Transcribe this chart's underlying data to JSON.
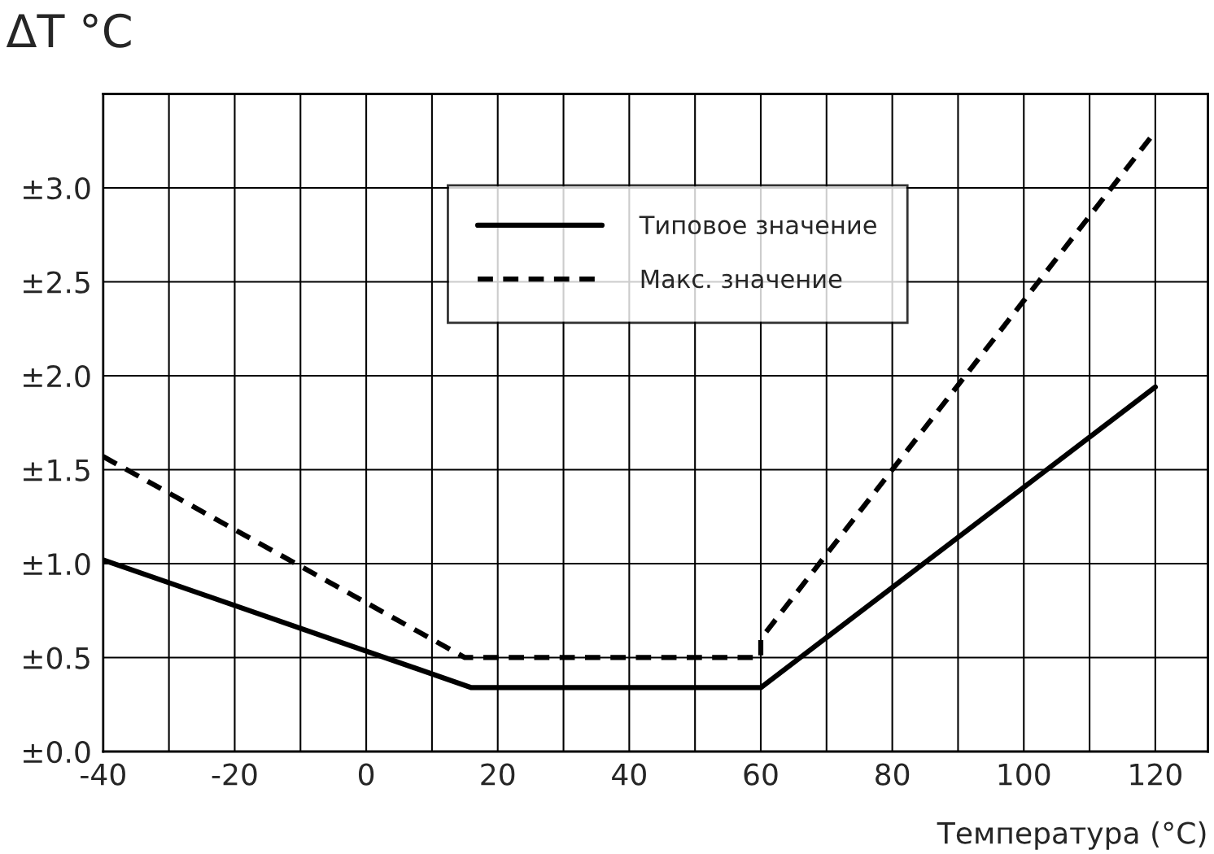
{
  "chart_data": {
    "type": "line",
    "ylabel": "ΔT °C",
    "xlabel": "Температура (°C)",
    "series": [
      {
        "name": "Типовое значение",
        "color": "#000000",
        "line_style": "solid",
        "x": [
          -40,
          16,
          60,
          120
        ],
        "values": [
          1.02,
          0.34,
          0.34,
          1.94
        ]
      },
      {
        "name": "Макс. значение",
        "color": "#000000",
        "line_style": "dashed",
        "x": [
          -40,
          15,
          60,
          60,
          120
        ],
        "values": [
          1.57,
          0.5,
          0.5,
          0.6,
          3.3
        ]
      }
    ],
    "xlim": [
      -40,
      128
    ],
    "xticks": [
      -40,
      {
        "value": -30,
        "label": null
      },
      -20,
      {
        "value": -10,
        "label": null
      },
      0,
      {
        "value": 10,
        "label": null
      },
      20,
      {
        "value": 30,
        "label": null
      },
      40,
      {
        "value": 50,
        "label": null
      },
      60,
      {
        "value": 70,
        "label": null
      },
      80,
      {
        "value": 90,
        "label": null
      },
      100,
      {
        "value": 110,
        "label": null
      },
      120
    ],
    "ylim": [
      0,
      3.5
    ],
    "yticks": [
      {
        "value": 0,
        "label": "±0.0"
      },
      {
        "value": 0.5,
        "label": "±0.5"
      },
      {
        "value": 1.0,
        "label": "±1.0"
      },
      {
        "value": 1.5,
        "label": "±1.5"
      },
      {
        "value": 2.0,
        "label": "±2.0"
      },
      {
        "value": 2.5,
        "label": "±2.5"
      },
      {
        "value": 3.0,
        "label": "±3.0"
      }
    ],
    "grid": true,
    "legend": "top",
    "marker": "none"
  }
}
